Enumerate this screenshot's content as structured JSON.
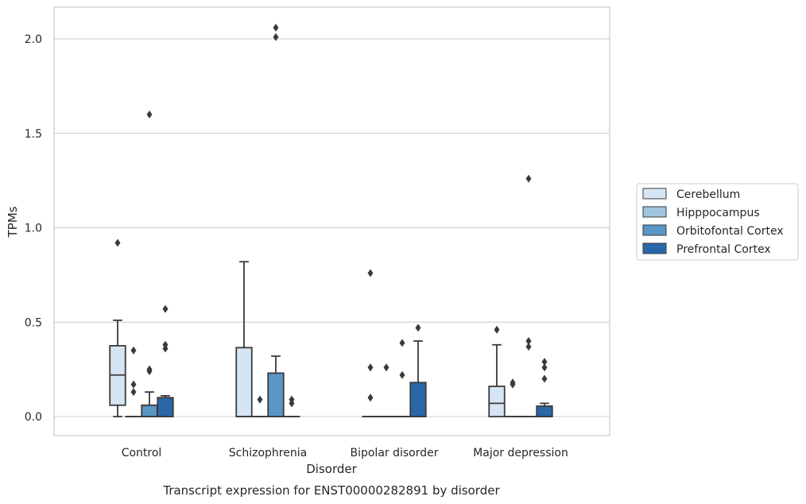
{
  "caption": "Transcript expression for ENST00000282891 by disorder",
  "chart_data": {
    "type": "boxplot",
    "title": "",
    "xlabel": "Disorder",
    "ylabel": "TPMs",
    "ylim": [
      -0.1,
      2.17
    ],
    "yticks": [
      0.0,
      0.5,
      1.0,
      1.5,
      2.0
    ],
    "ytick_labels": [
      "0.0",
      "0.5",
      "1.0",
      "1.5",
      "2.0"
    ],
    "grid": "horizontal",
    "legend_position": "right",
    "categories": [
      "Control",
      "Schizophrenia",
      "Bipolar disorder",
      "Major depression"
    ],
    "series": [
      {
        "name": "Cerebellum",
        "color": "#d6e5f4",
        "boxes": [
          {
            "q1": 0.06,
            "median": 0.22,
            "q3": 0.375,
            "whisker_low": 0.0,
            "whisker_high": 0.51,
            "outliers": [
              0.92
            ]
          },
          {
            "q1": 0.0,
            "median": 0.0,
            "q3": 0.365,
            "whisker_low": 0.0,
            "whisker_high": 0.82,
            "outliers": []
          },
          {
            "q1": 0.0,
            "median": 0.0,
            "q3": 0.0,
            "whisker_low": 0.0,
            "whisker_high": 0.0,
            "outliers": [
              0.76,
              0.26,
              0.1
            ]
          },
          {
            "q1": 0.0,
            "median": 0.07,
            "q3": 0.16,
            "whisker_low": 0.0,
            "whisker_high": 0.38,
            "outliers": [
              0.46
            ]
          }
        ]
      },
      {
        "name": "Hipppocampus",
        "color": "#a0c5e1",
        "boxes": [
          {
            "q1": 0.0,
            "median": 0.0,
            "q3": 0.0,
            "whisker_low": 0.0,
            "whisker_high": 0.0,
            "outliers": [
              0.35,
              0.17,
              0.13
            ]
          },
          {
            "q1": 0.0,
            "median": 0.0,
            "q3": 0.0,
            "whisker_low": 0.0,
            "whisker_high": 0.0,
            "outliers": [
              0.09
            ]
          },
          {
            "q1": 0.0,
            "median": 0.0,
            "q3": 0.0,
            "whisker_low": 0.0,
            "whisker_high": 0.0,
            "outliers": [
              0.26
            ]
          },
          {
            "q1": 0.0,
            "median": 0.0,
            "q3": 0.0,
            "whisker_low": 0.0,
            "whisker_high": 0.0,
            "outliers": [
              0.18,
              0.17
            ]
          }
        ]
      },
      {
        "name": "Orbitofontal Cortex",
        "color": "#5a96c6",
        "boxes": [
          {
            "q1": 0.0,
            "median": 0.0,
            "q3": 0.06,
            "whisker_low": 0.0,
            "whisker_high": 0.13,
            "outliers": [
              1.6,
              0.25,
              0.24
            ]
          },
          {
            "q1": 0.0,
            "median": 0.0,
            "q3": 0.23,
            "whisker_low": 0.0,
            "whisker_high": 0.32,
            "outliers": [
              2.06,
              2.01
            ]
          },
          {
            "q1": 0.0,
            "median": 0.0,
            "q3": 0.0,
            "whisker_low": 0.0,
            "whisker_high": 0.0,
            "outliers": [
              0.39,
              0.22
            ]
          },
          {
            "q1": 0.0,
            "median": 0.0,
            "q3": 0.0,
            "whisker_low": 0.0,
            "whisker_high": 0.0,
            "outliers": [
              1.26,
              0.4,
              0.37
            ]
          }
        ]
      },
      {
        "name": "Prefrontal Cortex",
        "color": "#2868a9",
        "boxes": [
          {
            "q1": 0.0,
            "median": 0.0,
            "q3": 0.1,
            "whisker_low": 0.0,
            "whisker_high": 0.11,
            "outliers": [
              0.57,
              0.38,
              0.36
            ]
          },
          {
            "q1": 0.0,
            "median": 0.0,
            "q3": 0.0,
            "whisker_low": 0.0,
            "whisker_high": 0.0,
            "outliers": [
              0.09,
              0.07
            ]
          },
          {
            "q1": 0.0,
            "median": 0.0,
            "q3": 0.18,
            "whisker_low": 0.0,
            "whisker_high": 0.4,
            "outliers": [
              0.47
            ]
          },
          {
            "q1": 0.0,
            "median": 0.0,
            "q3": 0.055,
            "whisker_low": 0.0,
            "whisker_high": 0.07,
            "outliers": [
              0.29,
              0.26,
              0.2
            ]
          }
        ]
      }
    ]
  }
}
